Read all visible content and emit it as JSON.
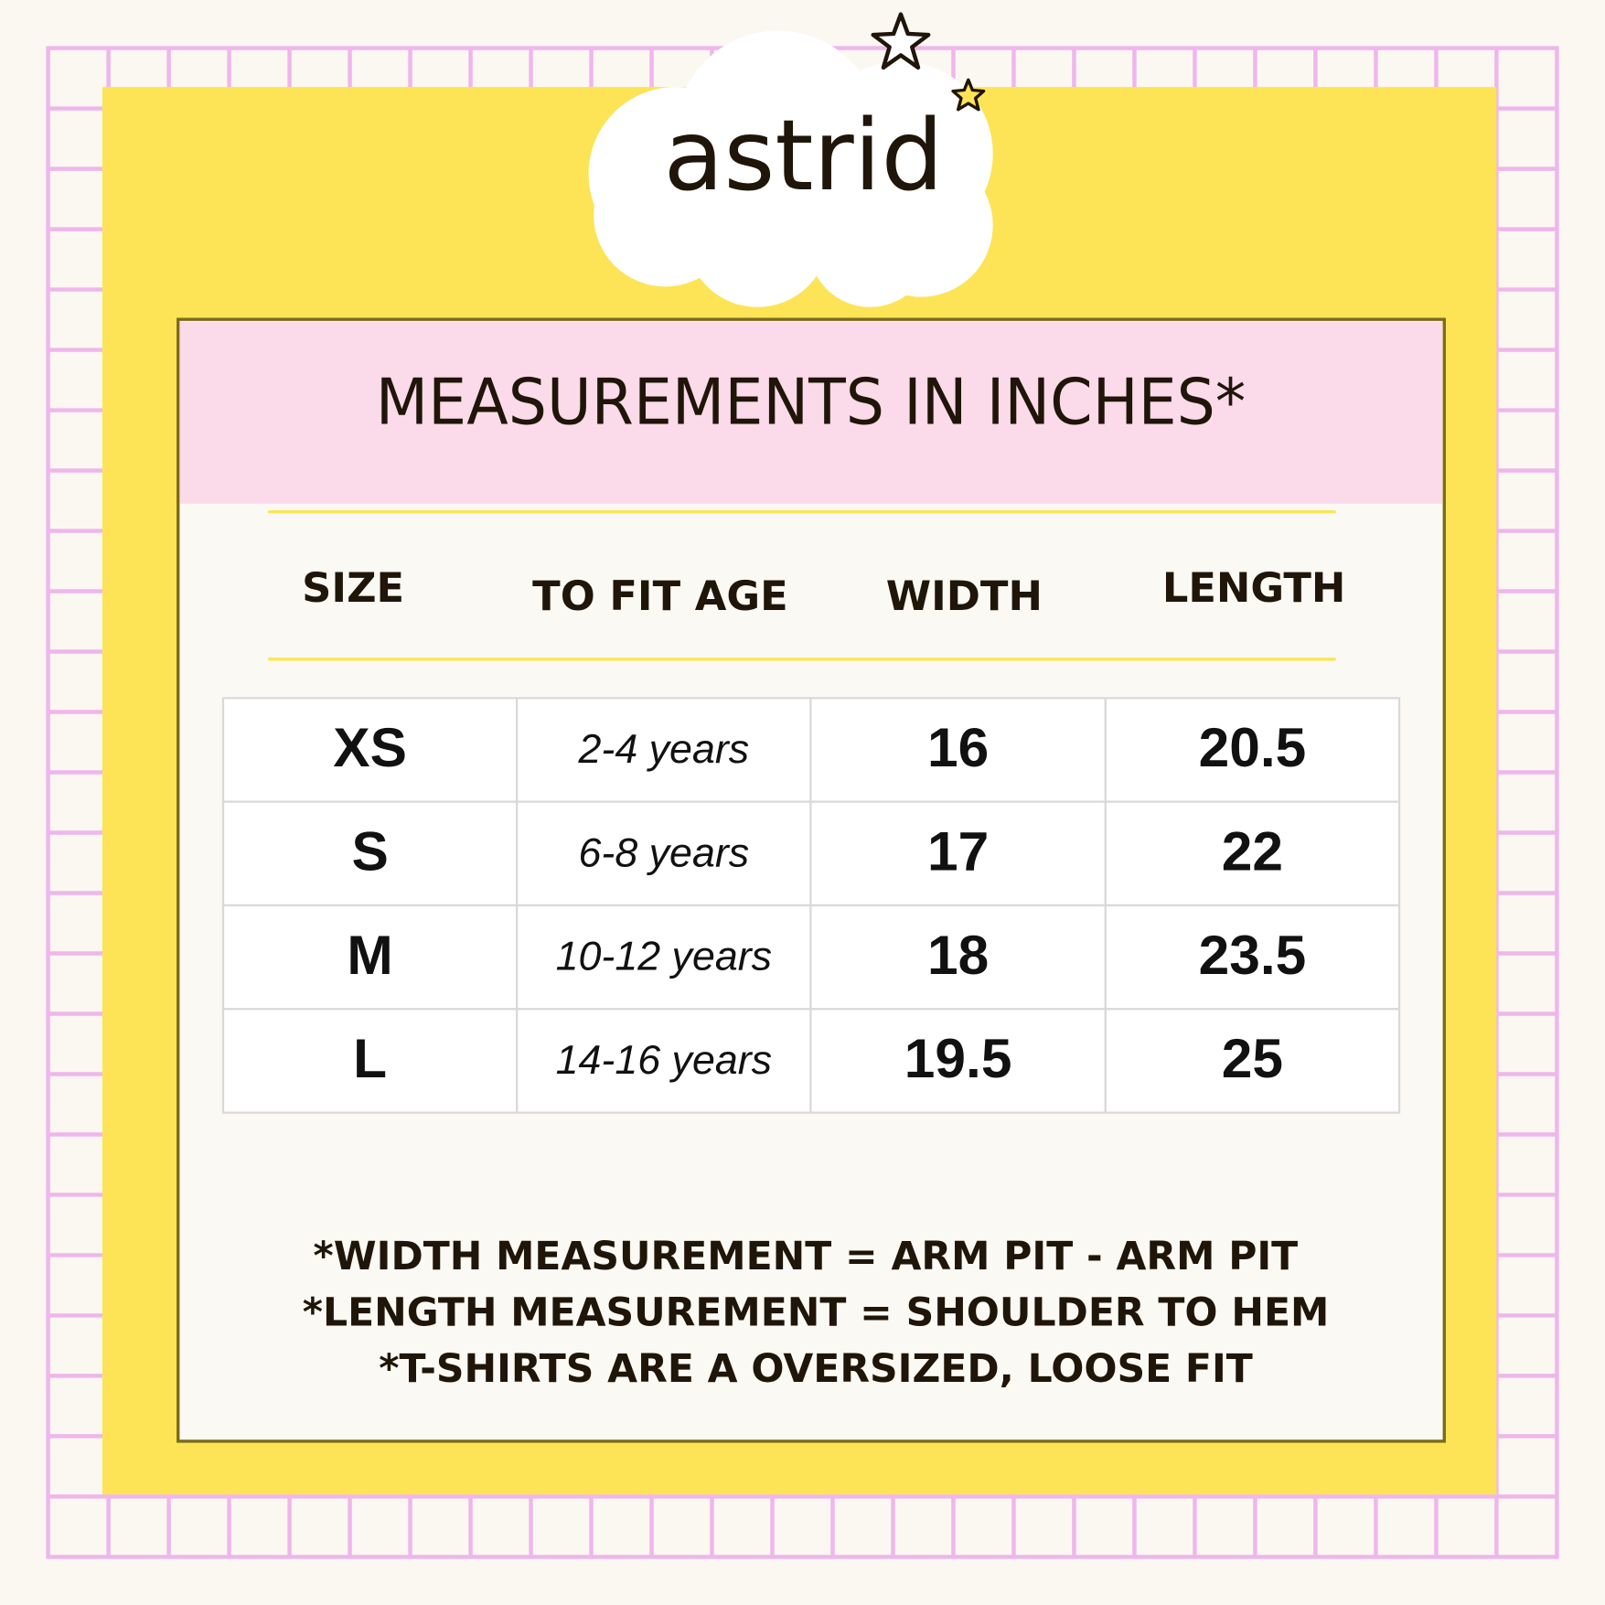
{
  "brand": "astrid",
  "title": "MEASUREMENTS IN INCHES*",
  "table": {
    "header": [
      "SIZE",
      "TO FIT AGE",
      "WIDTH",
      "LENGTH"
    ],
    "rows": [
      [
        "XS",
        "2-4 years",
        16,
        20.5
      ],
      [
        "S",
        "6-8 years",
        17,
        22
      ],
      [
        "M",
        "10-12 years",
        18,
        23.5
      ],
      [
        "L",
        "14-16 years",
        19.5,
        25
      ]
    ]
  },
  "notes": [
    "*WIDTH MEASUREMENT = ARM PIT - ARM PIT",
    "*LENGTH MEASUREMENT = SHOULDER TO HEM",
    "*T-SHIRTS ARE A OVERSIZED, LOOSE FIT"
  ]
}
